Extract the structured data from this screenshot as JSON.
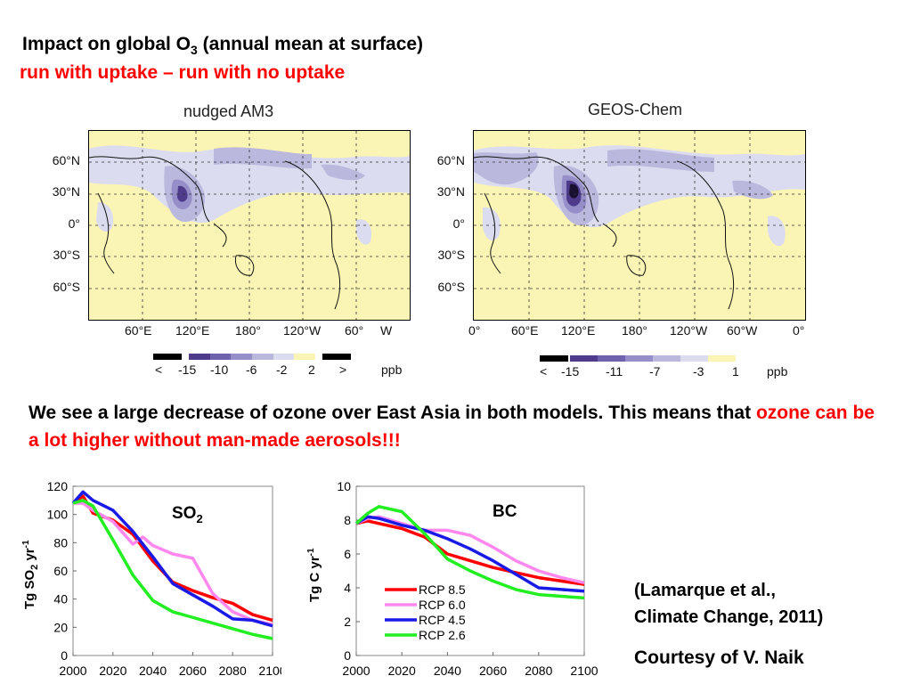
{
  "header": {
    "title_prefix": "Impact on global O",
    "title_sub": "3",
    "title_suffix": " (annual mean at surface)",
    "subtitle": "run with uptake – run with no uptake"
  },
  "maps": [
    {
      "title": "nudged AM3",
      "lat_labels": [
        "60°N",
        "30°N",
        "0°",
        "30°S",
        "60°S"
      ],
      "lon_labels": [
        "60°E",
        "120°E",
        "180°",
        "120°W",
        "60°",
        "W"
      ],
      "colorbar": {
        "labels": [
          "<",
          "-15",
          "-10",
          "-6",
          "-2",
          "2",
          ">"
        ],
        "unit": "ppb",
        "colors": [
          "#2d1a5e",
          "#4f3b8c",
          "#6e62ad",
          "#958ec8",
          "#bbb8de",
          "#dcdcf0",
          "#fbf5b5"
        ]
      }
    },
    {
      "title": "GEOS-Chem",
      "lat_labels": [
        "60°N",
        "30°N",
        "0°",
        "30°S",
        "60°S"
      ],
      "lon_labels": [
        "0°",
        "60°E",
        "120°E",
        "180°",
        "120°W",
        "60°W",
        "0°"
      ],
      "colorbar": {
        "labels": [
          "<",
          "-15",
          "-11",
          "-7",
          "-3",
          "1",
          "ppb"
        ],
        "unit": "ppb",
        "colors": [
          "#2d1a5e",
          "#4f3b8c",
          "#6e62ad",
          "#958ec8",
          "#bbb8de",
          "#dcdcf0",
          "#fbf5b5"
        ]
      }
    }
  ],
  "statement": {
    "black_part": "We see a large decrease of ozone over East Asia in both models. This means that ",
    "red_part": "ozone can be a lot higher without man-made aerosols!!!"
  },
  "citation": {
    "line1": "(Lamarque et al.,",
    "line2": "Climate Change, 2011)",
    "courtesy": "Courtesy of V. Naik"
  },
  "chart_data": [
    {
      "type": "line",
      "title": "SO2",
      "title_main": "SO",
      "title_sub": "2",
      "ylabel": "Tg SO2 yr-1",
      "ylabel_parts": {
        "a": "Tg SO",
        "b": "2",
        "c": " yr",
        "d": "-1"
      },
      "xlabel": "",
      "xlim": [
        2000,
        2100
      ],
      "ylim": [
        0,
        120
      ],
      "xticks": [
        2000,
        2020,
        2040,
        2060,
        2080,
        2100
      ],
      "yticks": [
        0,
        20,
        40,
        60,
        80,
        100,
        120
      ],
      "grid": false,
      "series": [
        {
          "name": "RCP 8.5",
          "color": "#ff0000",
          "x": [
            2000,
            2005,
            2010,
            2020,
            2030,
            2040,
            2050,
            2060,
            2070,
            2080,
            2090,
            2100
          ],
          "y": [
            108,
            113,
            101,
            96,
            86,
            67,
            52,
            46,
            41,
            37,
            29,
            25
          ]
        },
        {
          "name": "RCP 6.0",
          "color": "#ff88ee",
          "x": [
            2000,
            2005,
            2010,
            2020,
            2030,
            2035,
            2040,
            2050,
            2060,
            2070,
            2080,
            2090,
            2100
          ],
          "y": [
            108,
            108,
            103,
            95,
            79,
            84,
            78,
            72,
            69,
            44,
            31,
            25,
            22
          ]
        },
        {
          "name": "RCP 4.5",
          "color": "#1a1ae6",
          "x": [
            2000,
            2005,
            2010,
            2020,
            2030,
            2040,
            2050,
            2060,
            2070,
            2080,
            2090,
            2100
          ],
          "y": [
            108,
            116,
            110,
            103,
            88,
            70,
            51,
            43,
            35,
            26,
            25,
            21
          ]
        },
        {
          "name": "RCP 2.6",
          "color": "#22ee22",
          "x": [
            2000,
            2005,
            2010,
            2020,
            2030,
            2040,
            2050,
            2060,
            2070,
            2080,
            2090,
            2100
          ],
          "y": [
            108,
            110,
            106,
            82,
            57,
            39,
            31,
            27,
            23,
            19,
            15,
            12
          ]
        }
      ]
    },
    {
      "type": "line",
      "title": "BC",
      "ylabel": "Tg C yr-1",
      "ylabel_parts": {
        "a": "Tg C yr",
        "d": "-1"
      },
      "xlabel": "",
      "xlim": [
        2000,
        2100
      ],
      "ylim": [
        0,
        10
      ],
      "xticks": [
        2000,
        2020,
        2040,
        2060,
        2080,
        2100
      ],
      "yticks": [
        0,
        2,
        4,
        6,
        8,
        10
      ],
      "grid": false,
      "legend": "lower-left",
      "series": [
        {
          "name": "RCP 8.5",
          "color": "#ff0000",
          "x": [
            2000,
            2005,
            2010,
            2020,
            2030,
            2040,
            2050,
            2060,
            2070,
            2080,
            2090,
            2100
          ],
          "y": [
            7.8,
            7.95,
            7.8,
            7.5,
            7.0,
            6.0,
            5.6,
            5.2,
            4.9,
            4.6,
            4.4,
            4.2
          ]
        },
        {
          "name": "RCP 6.0",
          "color": "#ff88ee",
          "x": [
            2000,
            2005,
            2010,
            2020,
            2030,
            2040,
            2050,
            2060,
            2070,
            2080,
            2090,
            2100
          ],
          "y": [
            7.8,
            8.1,
            8.2,
            7.8,
            7.4,
            7.4,
            7.1,
            6.4,
            5.6,
            5.0,
            4.6,
            4.3
          ]
        },
        {
          "name": "RCP 4.5",
          "color": "#1a1ae6",
          "x": [
            2000,
            2005,
            2010,
            2020,
            2030,
            2040,
            2050,
            2060,
            2070,
            2080,
            2090,
            2100
          ],
          "y": [
            7.8,
            8.2,
            8.1,
            7.7,
            7.4,
            6.9,
            6.3,
            5.6,
            4.8,
            4.0,
            3.9,
            3.8
          ]
        },
        {
          "name": "RCP 2.6",
          "color": "#22ee22",
          "x": [
            2000,
            2005,
            2010,
            2020,
            2030,
            2040,
            2050,
            2060,
            2070,
            2080,
            2090,
            2100
          ],
          "y": [
            7.8,
            8.4,
            8.8,
            8.5,
            7.2,
            5.7,
            5.0,
            4.4,
            3.9,
            3.6,
            3.5,
            3.4
          ]
        }
      ]
    }
  ]
}
